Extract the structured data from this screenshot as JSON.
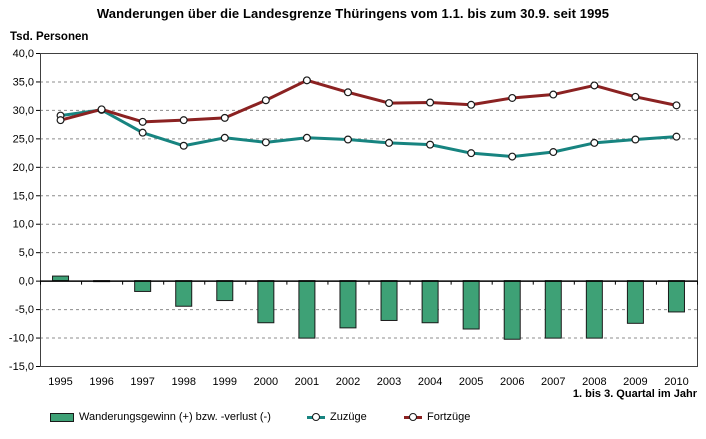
{
  "title": "Wanderungen über die Landesgrenze Thüringens vom 1.1. bis zum 30.9. seit 1995",
  "y_axis_unit_label": "Tsd. Personen",
  "x_axis_note": "1. bis 3. Quartal im Jahr",
  "colors": {
    "balance_bar_fill": "#3EA176",
    "balance_bar_border": "#1A1A1A",
    "zuzuege_line": "#178480",
    "fortzuege_line": "#8B2222",
    "marker_fill": "#FFFFFF",
    "marker_border": "#1A1A1A",
    "gridline": "#8C8C8C",
    "axis_frame": "#404040",
    "zero_axis": "#000000"
  },
  "chart_data": {
    "type": "combo-bar-line",
    "title": "Wanderungen über die Landesgrenze Thüringens vom 1.1. bis zum 30.9. seit 1995",
    "ylabel": "Tsd. Personen",
    "xlabel": "1. bis 3. Quartal im Jahr",
    "categories": [
      "1995",
      "1996",
      "1997",
      "1998",
      "1999",
      "2000",
      "2001",
      "2002",
      "2003",
      "2004",
      "2005",
      "2006",
      "2007",
      "2008",
      "2009",
      "2010"
    ],
    "series": [
      {
        "name": "Wanderungsgewinn (+) bzw. -verlust (-)",
        "type": "bar",
        "values": [
          0.8,
          -0.1,
          -1.9,
          -4.5,
          -3.5,
          -7.4,
          -10.1,
          -8.3,
          -7.0,
          -7.4,
          -8.5,
          -10.3,
          -10.1,
          -10.1,
          -7.5,
          -5.5
        ]
      },
      {
        "name": "Zuzüge",
        "type": "line",
        "values": [
          29.0,
          30.0,
          26.0,
          23.7,
          25.1,
          24.3,
          25.1,
          24.8,
          24.2,
          23.9,
          22.4,
          21.8,
          22.6,
          24.2,
          24.8,
          25.3
        ]
      },
      {
        "name": "Fortzüge",
        "type": "line",
        "values": [
          28.2,
          30.1,
          27.9,
          28.2,
          28.6,
          31.7,
          35.2,
          33.1,
          31.2,
          31.3,
          30.9,
          32.1,
          32.7,
          34.3,
          32.3,
          30.8
        ]
      }
    ],
    "ylim": [
      -15,
      40
    ],
    "ytick_step": 5,
    "ytick_labels": [
      "40,0",
      "35,0",
      "30,0",
      "25,0",
      "20,0",
      "15,0",
      "10,0",
      "5,0",
      "0,0",
      "-5,0",
      "-10,0",
      "-15,0"
    ],
    "number_format": "german-comma",
    "grid": true,
    "legend_position": "bottom"
  }
}
